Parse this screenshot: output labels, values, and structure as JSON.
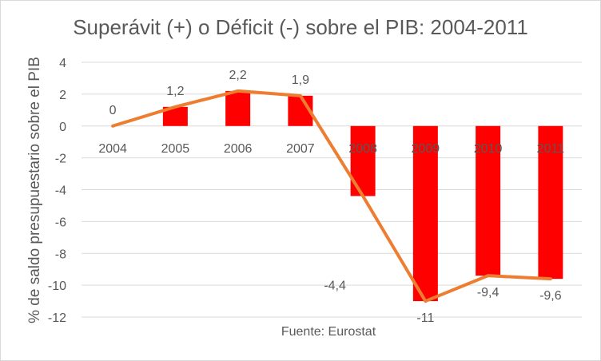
{
  "chart_data": {
    "type": "bar+line",
    "title": "Superávit (+) o Déficit (-) sobre el PIB: 2004-2011",
    "xlabel": "",
    "ylabel": "% de saldo presupuestario sobre el PIB",
    "source": "Fuente: Eurostat",
    "categories": [
      "2004",
      "2005",
      "2006",
      "2007",
      "2008",
      "2009",
      "2010",
      "2011"
    ],
    "values": [
      0,
      1.2,
      2.2,
      1.9,
      -4.4,
      -11,
      -9.4,
      -9.6
    ],
    "data_labels": [
      "0",
      "1,2",
      "2,2",
      "1,9",
      "-4,4",
      "-11",
      "-9,4",
      "-9,6"
    ],
    "ylim": [
      -12,
      4
    ],
    "yticks": [
      4,
      2,
      0,
      -2,
      -4,
      -6,
      -8,
      -10,
      -12
    ],
    "grid": true,
    "legend": "none",
    "colors": {
      "bar": "#FF0000",
      "line": "#ED7D31",
      "grid": "#d9d9d9",
      "text": "#595959"
    }
  }
}
